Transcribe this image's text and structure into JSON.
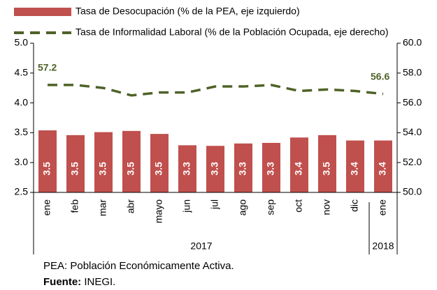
{
  "chart_data": {
    "type": "bar-line",
    "categories": [
      "ene",
      "feb",
      "mar",
      "abr",
      "mayo",
      "jun",
      "jul",
      "ago",
      "sep",
      "oct",
      "nov",
      "dic",
      "ene"
    ],
    "groups": [
      {
        "label": "2017",
        "from": 0,
        "to": 11
      },
      {
        "label": "2018",
        "from": 12,
        "to": 12
      }
    ],
    "series": [
      {
        "name": "Tasa de Desocupación (% de la PEA, eje izquierdo)",
        "type": "bar",
        "color": "#c0504d",
        "values": [
          3.54,
          3.46,
          3.51,
          3.53,
          3.48,
          3.29,
          3.28,
          3.32,
          3.33,
          3.42,
          3.46,
          3.37,
          3.37
        ],
        "value_labels": [
          "3.5",
          "3.5",
          "3.5",
          "3.5",
          "3.5",
          "3.3",
          "3.3",
          "3.3",
          "3.3",
          "3.4",
          "3.5",
          "3.4",
          "3.4"
        ]
      },
      {
        "name": "Tasa de Informalidad Laboral (% de la Población Ocupada, eje derecho)",
        "type": "line",
        "axis": "y2",
        "color": "#4f6228",
        "dashed": true,
        "values": [
          57.2,
          57.2,
          57.0,
          56.5,
          56.7,
          56.7,
          57.1,
          57.1,
          57.2,
          56.8,
          56.9,
          56.8,
          56.6
        ],
        "label_points": [
          0,
          12
        ]
      }
    ],
    "ylim": [
      2.5,
      5.0
    ],
    "yticks": [
      2.5,
      {
        "value": 3,
        "label": "3.0"
      },
      3.5,
      {
        "value": 4,
        "label": "4.0"
      },
      4.5,
      {
        "value": 5,
        "label": "5.0"
      }
    ],
    "y2lim": [
      50,
      60
    ],
    "y2ticks": [
      {
        "value": 50,
        "label": "50.0"
      },
      {
        "value": 52,
        "label": "52.0"
      },
      {
        "value": 54,
        "label": "54.0"
      },
      {
        "value": 56,
        "label": "56.0"
      },
      {
        "value": 58,
        "label": "58.0"
      },
      {
        "value": 60,
        "label": "60.0"
      }
    ],
    "notes": [
      "PEA: Población Económicamente Activa."
    ],
    "source": {
      "label": "Fuente:",
      "text": "INEGI."
    }
  }
}
